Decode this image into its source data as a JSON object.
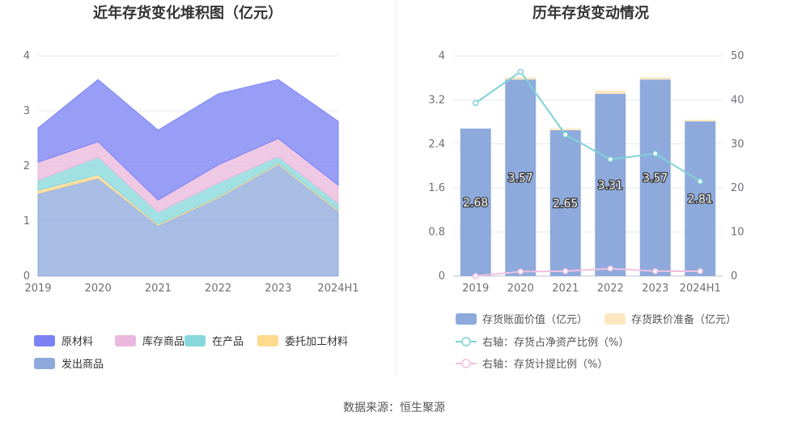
{
  "source_text": "数据来源：恒生聚源",
  "chart_data": [
    {
      "type": "area",
      "stacked": true,
      "title": "近年存货变化堆积图（亿元）",
      "x": [
        "2019",
        "2020",
        "2021",
        "2022",
        "2023",
        "2024H1"
      ],
      "ylim": [
        0,
        4
      ],
      "yticks": [
        "0",
        "1",
        "2",
        "3",
        "4"
      ],
      "grid": true,
      "legend_position": "bottom-left",
      "series": [
        {
          "name": "发出商品",
          "color": "#8eaadc",
          "values": [
            1.5,
            1.78,
            0.92,
            1.42,
            2.03,
            1.18
          ]
        },
        {
          "name": "委托加工材料",
          "color": "#ffd98e",
          "values": [
            0.06,
            0.06,
            0.02,
            0.02,
            0.02,
            0.02
          ]
        },
        {
          "name": "在产品",
          "color": "#88d8db",
          "values": [
            0.18,
            0.32,
            0.22,
            0.25,
            0.12,
            0.12
          ]
        },
        {
          "name": "库存商品",
          "color": "#eab8dd",
          "values": [
            0.33,
            0.28,
            0.22,
            0.33,
            0.33,
            0.33
          ]
        },
        {
          "name": "原材料",
          "color": "#7b83f4",
          "values": [
            0.62,
            1.13,
            1.27,
            1.29,
            1.07,
            1.16
          ]
        }
      ],
      "legend_order": [
        "原材料",
        "库存商品",
        "在产品",
        "委托加工材料",
        "发出商品"
      ]
    },
    {
      "type": "bar+line",
      "title": "历年存货变动情况",
      "x": [
        "2019",
        "2020",
        "2021",
        "2022",
        "2023",
        "2024H1"
      ],
      "ylim_left": [
        0,
        4
      ],
      "yticks_left": [
        "0",
        "0.8",
        "1.6",
        "2.4",
        "3.2",
        "4"
      ],
      "ylim_right": [
        0,
        50
      ],
      "yticks_right": [
        "0",
        "10",
        "20",
        "30",
        "40",
        "50"
      ],
      "grid": true,
      "legend_position": "bottom-left",
      "bars": [
        {
          "name": "存货账面价值（亿元）",
          "color": "#8eaadc",
          "values": [
            2.68,
            3.57,
            2.65,
            3.31,
            3.57,
            2.81
          ],
          "labels": [
            "2.68",
            "3.57",
            "2.65",
            "3.31",
            "3.57",
            "2.81"
          ]
        },
        {
          "name": "存货跌价准备（亿元）",
          "color": "#fde7c0",
          "values": [
            0.0,
            0.04,
            0.03,
            0.06,
            0.04,
            0.03
          ]
        }
      ],
      "lines": [
        {
          "name": "右轴：存货占净资产比例（%）",
          "color": "#7fd2d6",
          "values": [
            39.3,
            46.4,
            32.1,
            26.5,
            27.8,
            21.5
          ]
        },
        {
          "name": "右轴：存货计提比例（%）",
          "color": "#f0bfe1",
          "values": [
            0.0,
            1.0,
            1.1,
            1.7,
            1.1,
            1.1
          ]
        }
      ]
    }
  ]
}
